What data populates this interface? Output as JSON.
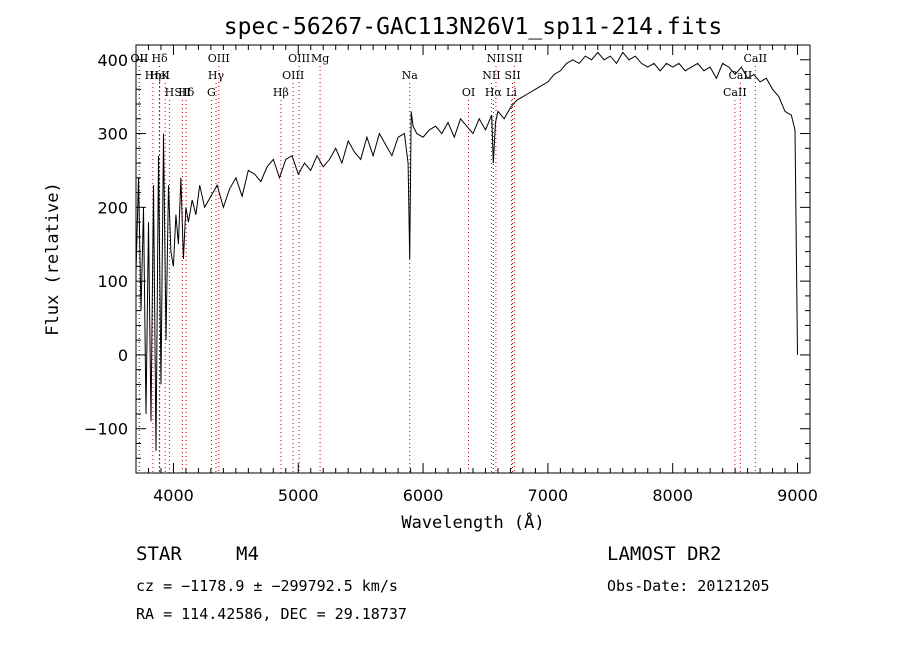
{
  "chart_data": {
    "type": "line",
    "title": "spec-56267-GAC113N26V1_sp11-214.fits",
    "xlabel": "Wavelength (Å)",
    "ylabel": "Flux (relative)",
    "xlim": [
      3700,
      9100
    ],
    "ylim": [
      -160,
      420
    ],
    "x_ticks": [
      4000,
      5000,
      6000,
      7000,
      8000,
      9000
    ],
    "y_ticks": [
      -100,
      0,
      100,
      200,
      300,
      400
    ],
    "grid": false,
    "series": [
      {
        "color": "#000000",
        "x": [
          3700,
          3720,
          3740,
          3760,
          3780,
          3800,
          3820,
          3840,
          3860,
          3880,
          3900,
          3920,
          3940,
          3960,
          3980,
          4000,
          4020,
          4040,
          4060,
          4080,
          4100,
          4120,
          4150,
          4180,
          4210,
          4250,
          4300,
          4350,
          4400,
          4450,
          4500,
          4550,
          4600,
          4650,
          4700,
          4750,
          4800,
          4850,
          4900,
          4950,
          5000,
          5050,
          5100,
          5150,
          5200,
          5250,
          5300,
          5350,
          5400,
          5450,
          5500,
          5550,
          5600,
          5650,
          5700,
          5750,
          5800,
          5850,
          5880,
          5893,
          5905,
          5920,
          5950,
          6000,
          6050,
          6100,
          6150,
          6200,
          6250,
          6300,
          6350,
          6400,
          6450,
          6500,
          6550,
          6563,
          6580,
          6600,
          6650,
          6700,
          6750,
          6800,
          6850,
          6900,
          6950,
          7000,
          7050,
          7100,
          7150,
          7200,
          7250,
          7300,
          7350,
          7400,
          7450,
          7500,
          7550,
          7600,
          7650,
          7700,
          7750,
          7800,
          7850,
          7900,
          7950,
          8000,
          8050,
          8100,
          8150,
          8200,
          8250,
          8300,
          8350,
          8400,
          8450,
          8500,
          8550,
          8600,
          8650,
          8700,
          8750,
          8800,
          8850,
          8900,
          8950,
          8980,
          9000
        ],
        "y": [
          110,
          240,
          60,
          200,
          -80,
          180,
          -90,
          230,
          -130,
          270,
          -40,
          300,
          20,
          230,
          140,
          120,
          190,
          150,
          240,
          130,
          200,
          180,
          210,
          190,
          230,
          200,
          215,
          230,
          200,
          225,
          240,
          215,
          250,
          245,
          235,
          255,
          265,
          240,
          265,
          270,
          245,
          260,
          250,
          270,
          255,
          265,
          280,
          260,
          290,
          275,
          265,
          295,
          270,
          300,
          285,
          270,
          295,
          300,
          260,
          130,
          330,
          310,
          300,
          295,
          305,
          310,
          300,
          315,
          295,
          320,
          310,
          300,
          320,
          305,
          325,
          260,
          315,
          330,
          320,
          335,
          345,
          350,
          355,
          360,
          365,
          370,
          380,
          385,
          395,
          400,
          395,
          405,
          400,
          410,
          400,
          405,
          395,
          410,
          400,
          405,
          395,
          390,
          395,
          385,
          395,
          390,
          395,
          385,
          390,
          395,
          385,
          390,
          375,
          395,
          390,
          380,
          390,
          375,
          380,
          370,
          375,
          360,
          350,
          330,
          325,
          305,
          0
        ]
      }
    ],
    "lines": [
      {
        "label": "Hδ",
        "x": 3889
      },
      {
        "label": "K",
        "x": 3934
      },
      {
        "label": "Hδ",
        "x": 4102
      },
      {
        "label": "OII",
        "x": 3727
      },
      {
        "label": "HeI",
        "x": 3889
      },
      {
        "label": "SII",
        "x": 4072
      },
      {
        "label": "OII",
        "x": 3727
      },
      {
        "label": "Hη",
        "x": 3835
      },
      {
        "label": "H",
        "x": 3968
      },
      {
        "label": "OIII",
        "x": 4363
      },
      {
        "label": "Hγ",
        "x": 4341
      },
      {
        "label": "G",
        "x": 4304
      },
      {
        "label": "OIII",
        "x": 5007
      },
      {
        "label": "OIII",
        "x": 4959
      },
      {
        "label": "Hβ",
        "x": 4861
      },
      {
        "label": "Mg",
        "x": 5175
      },
      {
        "label": "Na",
        "x": 5893
      },
      {
        "label": "OI",
        "x": 6364
      },
      {
        "label": "NII",
        "x": 6584
      },
      {
        "label": "SII",
        "x": 6717
      },
      {
        "label": "Hα",
        "x": 6563
      },
      {
        "label": "SII",
        "x": 6731
      },
      {
        "label": "NII",
        "x": 6548
      },
      {
        "label": "Li",
        "x": 6708
      },
      {
        "label": "CaII",
        "x": 8662
      },
      {
        "label": "CaII",
        "x": 8542
      },
      {
        "label": "CaII",
        "x": 8498
      }
    ],
    "line_color": "#cc0000"
  },
  "info": {
    "class": "STAR",
    "subclass": "M4",
    "survey": "LAMOST DR2",
    "cz": "cz = −1178.9 ± −299792.5 km/s",
    "obs_date": "Obs-Date: 20121205",
    "radec": "RA = 114.42586, DEC =  29.18737"
  }
}
